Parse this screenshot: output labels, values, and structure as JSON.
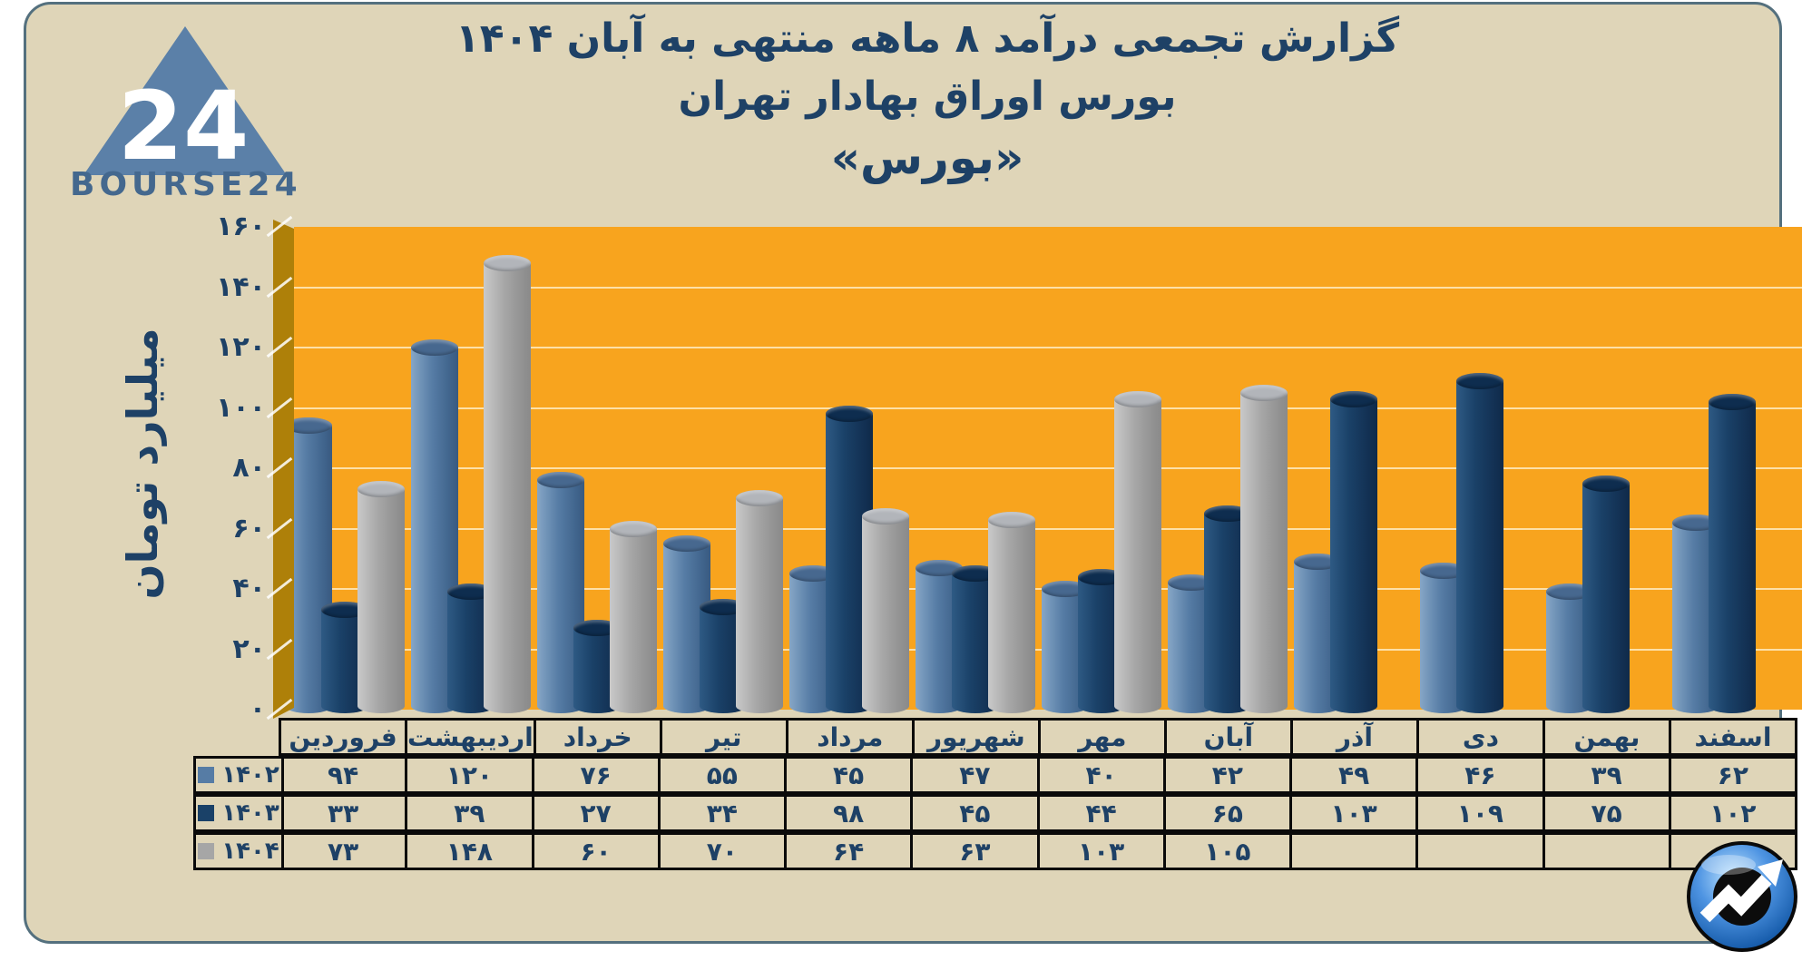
{
  "brand": {
    "wordmark": "BOURSE24",
    "logo_number": "24"
  },
  "title": {
    "line1": "گزارش تجمعی درآمد ۸ ماهه منتهی به آبان ۱۴۰۴",
    "line2": "بورس اوراق بهادار تهران",
    "line3": "«بورس»"
  },
  "chart_data": {
    "type": "bar",
    "title": "گزارش تجمعی درآمد ۸ ماهه منتهی به آبان ۱۴۰۴ بورس اوراق بهادار تهران «بورس»",
    "ylabel": "میلیارد تومان",
    "ylim": [
      0,
      160
    ],
    "ytick_step": 20,
    "ytick_labels": [
      "۰",
      "۲۰",
      "۴۰",
      "۶۰",
      "۸۰",
      "۱۰۰",
      "۱۲۰",
      "۱۴۰",
      "۱۶۰"
    ],
    "grid": true,
    "legend_position": "table-left",
    "plot_bg": "#F8A41E",
    "wall_color": "#AE8009",
    "categories": [
      "فروردین",
      "اردیبهشت",
      "خرداد",
      "تیر",
      "مرداد",
      "شهریور",
      "مهر",
      "آبان",
      "آذر",
      "دی",
      "بهمن",
      "اسفند"
    ],
    "series": [
      {
        "label": "۱۴۰۲",
        "color": "#567CA5",
        "values": [
          94,
          120,
          76,
          55,
          45,
          47,
          40,
          42,
          49,
          46,
          39,
          62
        ],
        "display": [
          "۹۴",
          "۱۲۰",
          "۷۶",
          "۵۵",
          "۴۵",
          "۴۷",
          "۴۰",
          "۴۲",
          "۴۹",
          "۴۶",
          "۳۹",
          "۶۲"
        ]
      },
      {
        "label": "۱۴۰۳",
        "color": "#1A4168",
        "values": [
          33,
          39,
          27,
          34,
          98,
          45,
          44,
          65,
          103,
          109,
          75,
          102
        ],
        "display": [
          "۳۳",
          "۳۹",
          "۲۷",
          "۳۴",
          "۹۸",
          "۴۵",
          "۴۴",
          "۶۵",
          "۱۰۳",
          "۱۰۹",
          "۷۵",
          "۱۰۲"
        ]
      },
      {
        "label": "۱۴۰۴",
        "color": "#A6A6A6",
        "values": [
          73,
          148,
          60,
          70,
          64,
          63,
          103,
          105,
          null,
          null,
          null,
          null
        ],
        "display": [
          "۷۳",
          "۱۴۸",
          "۶۰",
          "۷۰",
          "۶۴",
          "۶۳",
          "۱۰۳",
          "۱۰۵",
          "",
          "",
          "",
          ""
        ]
      }
    ]
  },
  "colors": {
    "card_bg": "#DFD5B8",
    "card_border": "#54707E",
    "text_navy": "#1E4166",
    "table_border": "#0A0A0A"
  }
}
